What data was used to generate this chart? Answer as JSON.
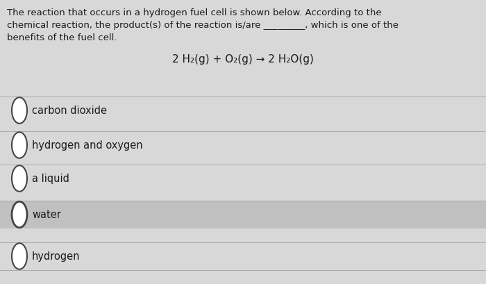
{
  "bg_color": "#d8d8d8",
  "paragraph_lines": [
    "The reaction that occurs in a hydrogen fuel cell is shown below. According to the",
    "chemical reaction, the product(s) of the reaction is/are _________, which is one of the",
    "benefits of the fuel cell."
  ],
  "equation": "2 H₂(g) + O₂(g) → 2 H₂O(g)",
  "options": [
    "carbon dioxide",
    "hydrogen and oxygen",
    "a liquid",
    "water",
    "hydrogen"
  ],
  "highlighted_option_index": 3,
  "highlight_color": "#c0c0c0",
  "text_color": "#1a1a1a",
  "font_size_para": 9.5,
  "font_size_eq": 11.0,
  "font_size_option": 10.5
}
